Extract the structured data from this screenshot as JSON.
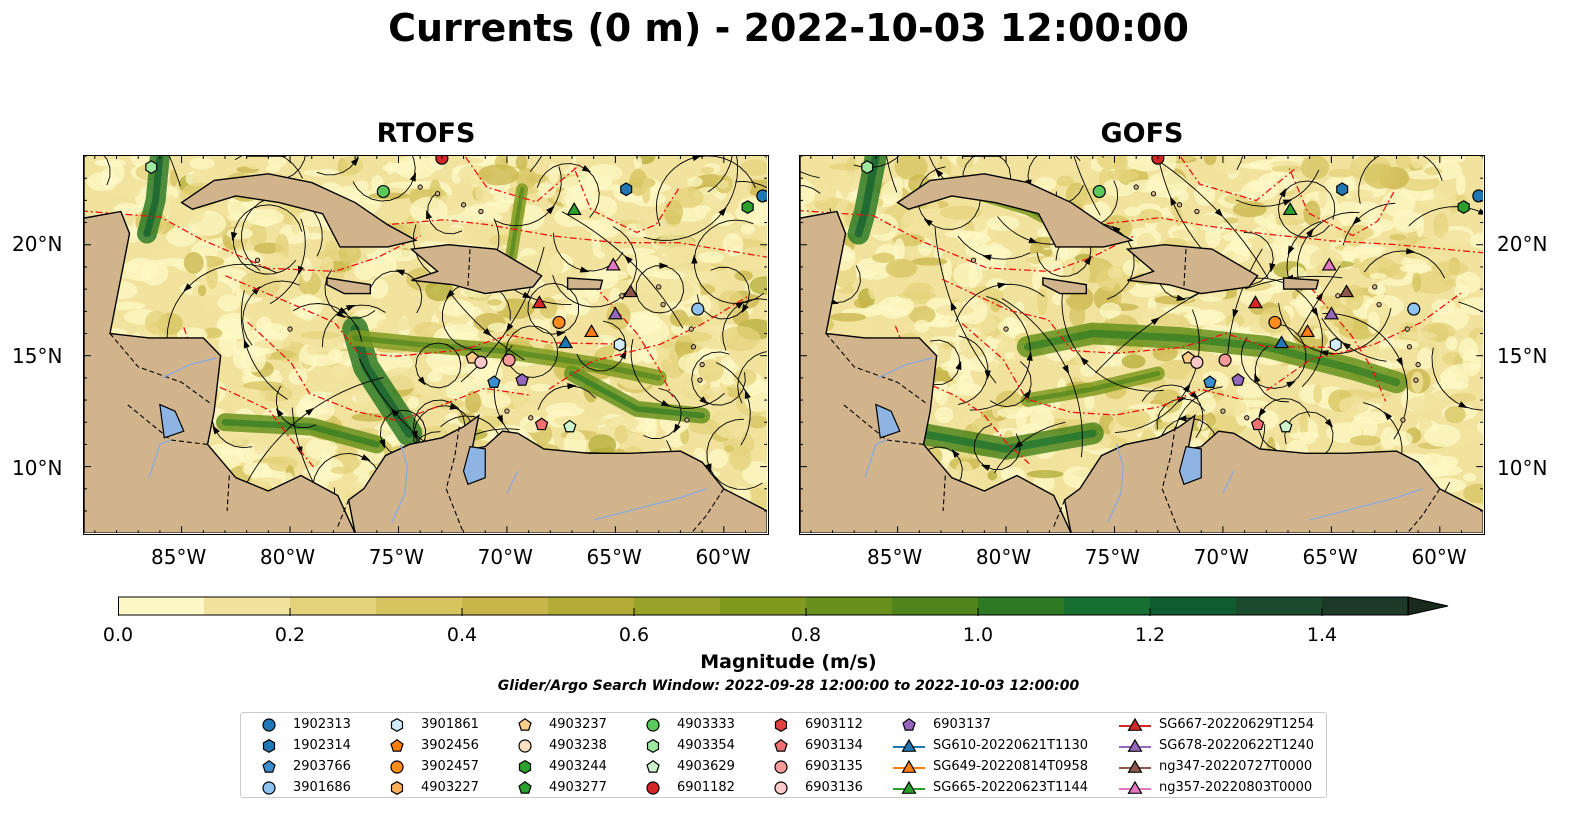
{
  "title": "Currents (0 m) - 2022-10-03 12:00:00",
  "panels": [
    {
      "title": "RTOFS",
      "variant": 1
    },
    {
      "title": "GOFS",
      "variant": 2
    }
  ],
  "axes": {
    "x_ticks": [
      "85°W",
      "80°W",
      "75°W",
      "70°W",
      "65°W",
      "60°W"
    ],
    "x_values": [
      -85,
      -80,
      -75,
      -70,
      -65,
      -60
    ],
    "y_ticks": [
      "20°N",
      "15°N",
      "10°N"
    ],
    "y_values": [
      20,
      15,
      10
    ],
    "lon_range": [
      -89.5,
      -58
    ],
    "lat_range": [
      7,
      24
    ]
  },
  "colorbar": {
    "title": "Magnitude (m/s)",
    "labels": [
      "0.0",
      "0.2",
      "0.4",
      "0.6",
      "0.8",
      "1.0",
      "1.2",
      "1.4"
    ],
    "values": [
      0,
      0.2,
      0.4,
      0.6,
      0.8,
      1.0,
      1.2,
      1.4
    ],
    "bins": 15,
    "extend": "max",
    "colors": [
      "#fdf8c6",
      "#f1e39e",
      "#e4d37b",
      "#d6c45f",
      "#c8b64a",
      "#b2ac36",
      "#97a429",
      "#7f9a1f",
      "#67901c",
      "#4f851c",
      "#2e7a24",
      "#157032",
      "#0f5c30",
      "#1b4a2d",
      "#1c3a28",
      "#182a1c"
    ]
  },
  "search_window": "Glider/Argo Search Window: 2022-09-28 12:00:00 to 2022-10-03 12:00:00",
  "legend": [
    {
      "label": "1902313",
      "marker": "circle",
      "color": "#1f77b4"
    },
    {
      "label": "1902314",
      "marker": "hexagon",
      "color": "#1f77b4"
    },
    {
      "label": "2903766",
      "marker": "pentagon",
      "color": "#3a8ed0"
    },
    {
      "label": "3901686",
      "marker": "circle",
      "color": "#8fc2ee"
    },
    {
      "label": "3901861",
      "marker": "hexagon",
      "color": "#d3ecfb"
    },
    {
      "label": "3902456",
      "marker": "pentagon",
      "color": "#ff7f0e"
    },
    {
      "label": "3902457",
      "marker": "circle",
      "color": "#ff8c1a"
    },
    {
      "label": "4903227",
      "marker": "hexagon",
      "color": "#ffae5c"
    },
    {
      "label": "4903237",
      "marker": "pentagon",
      "color": "#ffcd8a"
    },
    {
      "label": "4903238",
      "marker": "circle",
      "color": "#ffe1c2"
    },
    {
      "label": "4903244",
      "marker": "hexagon",
      "color": "#2ca02c"
    },
    {
      "label": "4903277",
      "marker": "pentagon",
      "color": "#2ca02c"
    },
    {
      "label": "4903333",
      "marker": "circle",
      "color": "#5cc95c"
    },
    {
      "label": "4903354",
      "marker": "hexagon",
      "color": "#9fe89f"
    },
    {
      "label": "4903629",
      "marker": "pentagon",
      "color": "#cdf5cd"
    },
    {
      "label": "6901182",
      "marker": "circle",
      "color": "#d62728"
    },
    {
      "label": "6903112",
      "marker": "hexagon",
      "color": "#e04141"
    },
    {
      "label": "6903134",
      "marker": "pentagon",
      "color": "#f07070"
    },
    {
      "label": "6903135",
      "marker": "circle",
      "color": "#f79a9a"
    },
    {
      "label": "6903136",
      "marker": "circle",
      "color": "#fbc9c9"
    },
    {
      "label": "6903137",
      "marker": "pentagon",
      "color": "#9467bd"
    },
    {
      "label": "SG610-20220621T1130",
      "marker": "triangle",
      "color": "#1f77b4"
    },
    {
      "label": "SG649-20220814T0958",
      "marker": "triangle",
      "color": "#ff7f0e"
    },
    {
      "label": "SG665-20220623T1144",
      "marker": "triangle",
      "color": "#2ca02c"
    },
    {
      "label": "SG667-20220629T1254",
      "marker": "triangle",
      "color": "#d62728"
    },
    {
      "label": "SG678-20220622T1240",
      "marker": "triangle",
      "color": "#9467bd"
    },
    {
      "label": "ng347-20220727T0000",
      "marker": "triangle",
      "color": "#8c564b"
    },
    {
      "label": "ng357-20220803T0000",
      "marker": "triangle",
      "color": "#e377c2"
    }
  ],
  "observations": [
    {
      "id": "1902313",
      "marker": "circle",
      "color": "#1f77b4",
      "lon": -58.2,
      "lat": 22.2
    },
    {
      "id": "1902314",
      "marker": "hexagon",
      "color": "#1f77b4",
      "lon": -64.5,
      "lat": 22.5
    },
    {
      "id": "4903244",
      "marker": "hexagon",
      "color": "#2ca02c",
      "lon": -58.9,
      "lat": 21.7
    },
    {
      "id": "4903333",
      "marker": "circle",
      "color": "#5cc95c",
      "lon": -75.7,
      "lat": 22.4
    },
    {
      "id": "4903354",
      "marker": "hexagon",
      "color": "#9fe89f",
      "lon": -86.4,
      "lat": 23.5
    },
    {
      "id": "6901182",
      "marker": "circle",
      "color": "#d62728",
      "lon": -73.0,
      "lat": 23.9
    },
    {
      "id": "3901686",
      "marker": "circle",
      "color": "#8fc2ee",
      "lon": -61.2,
      "lat": 17.1
    },
    {
      "id": "3901861",
      "marker": "hexagon",
      "color": "#d3ecfb",
      "lon": -64.8,
      "lat": 15.5
    },
    {
      "id": "3902457",
      "marker": "circle",
      "color": "#ff8c1a",
      "lon": -67.6,
      "lat": 16.5
    },
    {
      "id": "4903237",
      "marker": "pentagon",
      "color": "#ffcd8a",
      "lon": -71.6,
      "lat": 14.9
    },
    {
      "id": "6903135",
      "marker": "circle",
      "color": "#f79a9a",
      "lon": -69.9,
      "lat": 14.8
    },
    {
      "id": "6903136",
      "marker": "circle",
      "color": "#fbc9c9",
      "lon": -71.2,
      "lat": 14.7
    },
    {
      "id": "2903766",
      "marker": "pentagon",
      "color": "#3a8ed0",
      "lon": -70.6,
      "lat": 13.8
    },
    {
      "id": "6903137",
      "marker": "pentagon",
      "color": "#9467bd",
      "lon": -69.3,
      "lat": 13.9
    },
    {
      "id": "6903134",
      "marker": "pentagon",
      "color": "#f07070",
      "lon": -68.4,
      "lat": 11.9
    },
    {
      "id": "4903629",
      "marker": "pentagon",
      "color": "#cdf5cd",
      "lon": -67.1,
      "lat": 11.8
    },
    {
      "id": "SG610-20220621T1130",
      "marker": "triangle",
      "color": "#1f77b4",
      "lon": -67.3,
      "lat": 15.6
    },
    {
      "id": "SG649-20220814T0958",
      "marker": "triangle",
      "color": "#ff7f0e",
      "lon": -66.1,
      "lat": 16.1
    },
    {
      "id": "SG665-20220623T1144",
      "marker": "triangle",
      "color": "#2ca02c",
      "lon": -66.9,
      "lat": 21.6
    },
    {
      "id": "SG667-20220629T1254",
      "marker": "triangle",
      "color": "#d62728",
      "lon": -68.5,
      "lat": 17.4
    },
    {
      "id": "SG678-20220622T1240",
      "marker": "triangle",
      "color": "#9467bd",
      "lon": -65.0,
      "lat": 16.9
    },
    {
      "id": "ng347-20220727T0000",
      "marker": "triangle",
      "color": "#8c564b",
      "lon": -64.3,
      "lat": 17.9
    },
    {
      "id": "ng357-20220803T0000",
      "marker": "triangle",
      "color": "#e377c2",
      "lon": -65.1,
      "lat": 19.1
    }
  ]
}
